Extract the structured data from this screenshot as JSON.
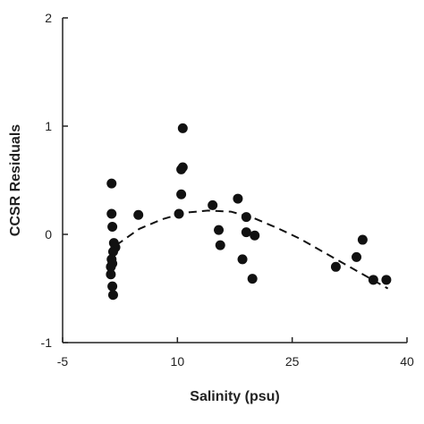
{
  "chart_data": {
    "type": "scatter",
    "title": "",
    "xlabel": "Salinity (psu)",
    "ylabel": "CCSR Residuals",
    "xlim": [
      -5,
      40
    ],
    "ylim": [
      -1,
      2
    ],
    "x_ticks": [
      -5,
      10,
      25,
      40
    ],
    "y_ticks": [
      -1,
      0,
      1,
      2
    ],
    "grid": false,
    "legend": "none",
    "marker_color": "#111111",
    "series": [
      {
        "points": [
          {
            "x": 1.4,
            "y": 0.47
          },
          {
            "x": 1.4,
            "y": 0.19
          },
          {
            "x": 1.5,
            "y": 0.07
          },
          {
            "x": 1.7,
            "y": -0.08
          },
          {
            "x": 1.9,
            "y": -0.12
          },
          {
            "x": 1.6,
            "y": -0.16
          },
          {
            "x": 1.4,
            "y": -0.23
          },
          {
            "x": 1.5,
            "y": -0.27
          },
          {
            "x": 1.3,
            "y": -0.3
          },
          {
            "x": 1.3,
            "y": -0.37
          },
          {
            "x": 1.5,
            "y": -0.48
          },
          {
            "x": 1.6,
            "y": -0.56
          },
          {
            "x": 4.9,
            "y": 0.18
          },
          {
            "x": 10.2,
            "y": 0.19
          },
          {
            "x": 10.5,
            "y": 0.37
          },
          {
            "x": 10.5,
            "y": 0.6
          },
          {
            "x": 10.7,
            "y": 0.62
          },
          {
            "x": 10.7,
            "y": 0.98
          },
          {
            "x": 14.6,
            "y": 0.27
          },
          {
            "x": 15.4,
            "y": 0.04
          },
          {
            "x": 15.6,
            "y": -0.1
          },
          {
            "x": 17.9,
            "y": 0.33
          },
          {
            "x": 18.5,
            "y": -0.23
          },
          {
            "x": 19.0,
            "y": 0.16
          },
          {
            "x": 19.0,
            "y": 0.02
          },
          {
            "x": 19.8,
            "y": -0.41
          },
          {
            "x": 20.1,
            "y": -0.01
          },
          {
            "x": 30.7,
            "y": -0.3
          },
          {
            "x": 33.4,
            "y": -0.21
          },
          {
            "x": 34.2,
            "y": -0.05
          },
          {
            "x": 35.6,
            "y": -0.42
          },
          {
            "x": 37.3,
            "y": -0.42
          }
        ]
      }
    ],
    "trendline": {
      "style": "dashed",
      "points": [
        {
          "x": 2.0,
          "y": -0.1
        },
        {
          "x": 5.0,
          "y": 0.05
        },
        {
          "x": 8.0,
          "y": 0.14
        },
        {
          "x": 11.0,
          "y": 0.2
        },
        {
          "x": 14.0,
          "y": 0.22
        },
        {
          "x": 17.0,
          "y": 0.21
        },
        {
          "x": 20.0,
          "y": 0.15
        },
        {
          "x": 23.0,
          "y": 0.06
        },
        {
          "x": 26.0,
          "y": -0.04
        },
        {
          "x": 29.0,
          "y": -0.16
        },
        {
          "x": 32.0,
          "y": -0.28
        },
        {
          "x": 35.0,
          "y": -0.4
        },
        {
          "x": 37.5,
          "y": -0.5
        }
      ]
    }
  }
}
